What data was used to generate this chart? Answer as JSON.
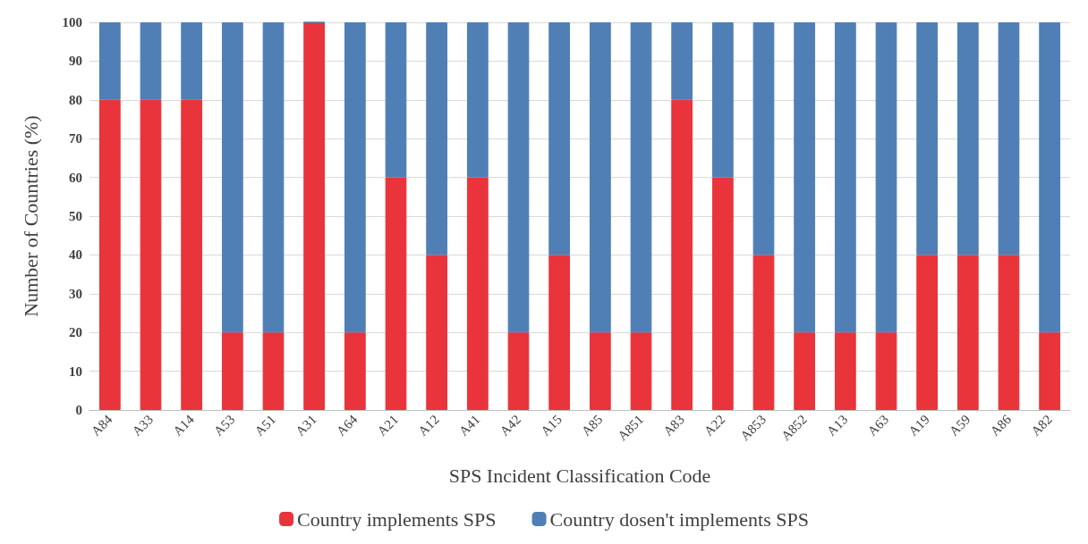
{
  "chart_data": {
    "type": "bar",
    "stacked": true,
    "xlabel": "SPS Incident Classification Code",
    "ylabel": "Number of Countries (%)",
    "categories": [
      "A84",
      "A33",
      "A14",
      "A53",
      "A51",
      "A31",
      "A64",
      "A21",
      "A12",
      "A41",
      "A42",
      "A15",
      "A85",
      "A851",
      "A83",
      "A22",
      "A853",
      "A852",
      "A13",
      "A63",
      "A19",
      "A59",
      "A86",
      "A82"
    ],
    "series": [
      {
        "name": "Country implements SPS",
        "color": "#e8343a",
        "values": [
          80,
          80,
          80,
          20,
          20,
          100,
          20,
          60,
          40,
          60,
          20,
          40,
          20,
          20,
          80,
          60,
          40,
          20,
          20,
          20,
          40,
          40,
          40,
          20
        ]
      },
      {
        "name": "Country dosen't implements SPS",
        "color": "#4f7fb5",
        "values": [
          20,
          20,
          20,
          80,
          80,
          0,
          80,
          40,
          60,
          40,
          80,
          60,
          80,
          80,
          20,
          40,
          60,
          80,
          80,
          80,
          60,
          60,
          60,
          80
        ]
      }
    ],
    "ylim": [
      0,
      100
    ],
    "yticks": [
      0,
      10,
      20,
      30,
      40,
      50,
      60,
      70,
      80,
      90,
      100
    ],
    "grid": "y",
    "legend": "bottom"
  }
}
